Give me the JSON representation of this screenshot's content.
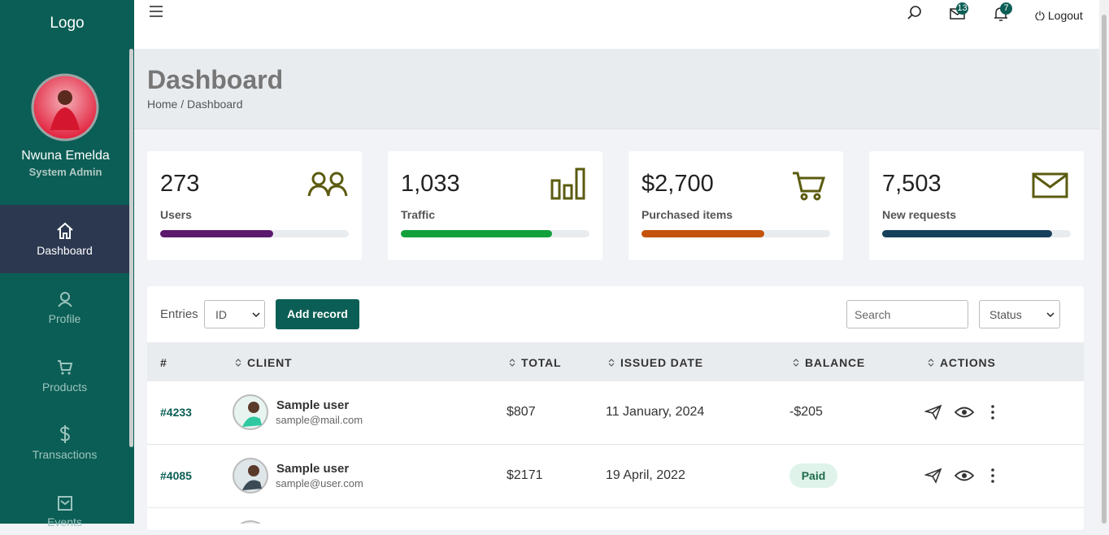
{
  "sidebar": {
    "logo": "Logo",
    "user": {
      "name": "Nwuna Emelda",
      "role": "System Admin"
    },
    "nav": [
      "Dashboard",
      "Profile",
      "Products",
      "Transactions",
      "Events"
    ]
  },
  "topbar": {
    "mail_badge": "13",
    "bell_badge": "7",
    "logout": "Logout"
  },
  "header": {
    "title": "Dashboard",
    "breadcrumb": "Home / Dashboard"
  },
  "stats": [
    {
      "value": "273",
      "label": "Users"
    },
    {
      "value": "1,033",
      "label": "Traffic"
    },
    {
      "value": "$2,700",
      "label": "Purchased items"
    },
    {
      "value": "7,503",
      "label": "New requests"
    }
  ],
  "toolbar": {
    "entries_label": "Entries",
    "entries_select": "ID",
    "add_button": "Add record",
    "search_placeholder": "Search",
    "status_select": "Status"
  },
  "table": {
    "columns": [
      "#",
      "CLIENT",
      "TOTAL",
      "ISSUED DATE",
      "BALANCE",
      "ACTIONS"
    ],
    "rows": [
      {
        "id": "#4233",
        "name": "Sample user",
        "email": "sample@mail.com",
        "total": "$807",
        "date": "11 January, 2024",
        "balance": "-$205"
      },
      {
        "id": "#4085",
        "name": "Sample user",
        "email": "sample@user.com",
        "total": "$2171",
        "date": "19 April, 2022",
        "balance": "Paid"
      }
    ]
  }
}
